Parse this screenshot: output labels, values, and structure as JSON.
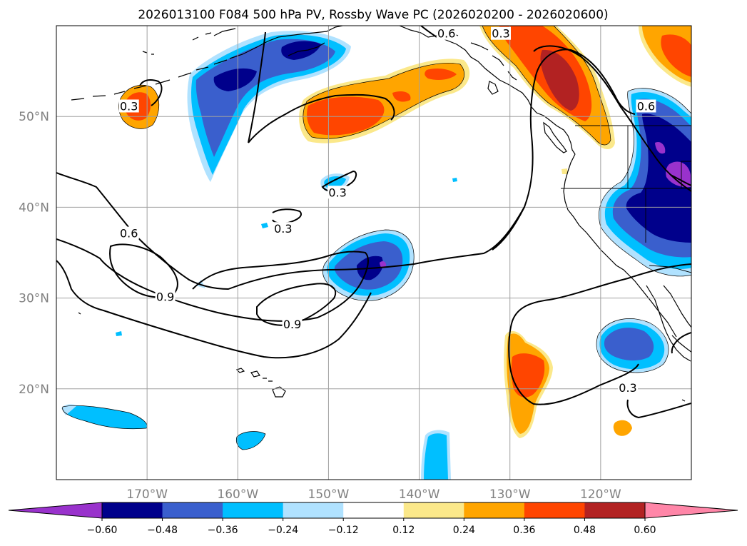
{
  "title": "2026013100 F084 500 hPa PV, Rossby Wave PC (2026020200 - 2026020600)",
  "map": {
    "lon_range": [
      -180,
      -110
    ],
    "lat_range": [
      10,
      60
    ],
    "lon_ticks": [
      {
        "value": -170,
        "label": "170°W"
      },
      {
        "value": -160,
        "label": "160°W"
      },
      {
        "value": -150,
        "label": "150°W"
      },
      {
        "value": -140,
        "label": "140°W"
      },
      {
        "value": -130,
        "label": "130°W"
      },
      {
        "value": -120,
        "label": "120°W"
      }
    ],
    "lat_ticks": [
      {
        "value": 50,
        "label": "50°N"
      },
      {
        "value": 40,
        "label": "40°N"
      },
      {
        "value": 30,
        "label": "30°N"
      },
      {
        "value": 20,
        "label": "20°N"
      }
    ],
    "gridlines": true
  },
  "contour_labels": [
    {
      "text": "0.3",
      "lon": -172,
      "lat": 51
    },
    {
      "text": "0.6",
      "lon": -137,
      "lat": 59
    },
    {
      "text": "0.3",
      "lon": -131,
      "lat": 59
    },
    {
      "text": "0.6",
      "lon": -115,
      "lat": 51
    },
    {
      "text": "0.3",
      "lon": -149,
      "lat": 41.5
    },
    {
      "text": "0.3",
      "lon": -155,
      "lat": 37.5
    },
    {
      "text": "0.6",
      "lon": -172,
      "lat": 37
    },
    {
      "text": "0.9",
      "lon": -168,
      "lat": 30
    },
    {
      "text": "0.9",
      "lon": -154,
      "lat": 27
    },
    {
      "text": "0.3",
      "lon": -117,
      "lat": 20
    }
  ],
  "colorbar": {
    "ticks": [
      "−0.60",
      "−0.48",
      "−0.36",
      "−0.24",
      "−0.12",
      "0.12",
      "0.24",
      "0.36",
      "0.48",
      "0.60"
    ],
    "colors": [
      "#9932cc",
      "#00008b",
      "#3a5fcd",
      "#00bfff",
      "#b0e2ff",
      "#ffffff",
      "#fbe88a",
      "#ffa500",
      "#ff4500",
      "#b22222",
      "#ff86a8"
    ],
    "extend": "both"
  }
}
